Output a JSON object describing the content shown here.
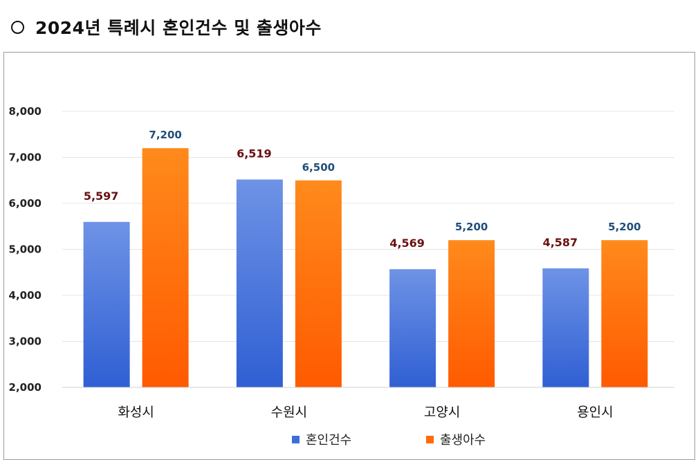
{
  "page": {
    "title": "2024년 특례시 혼인건수 및 출생아수"
  },
  "chart_data": {
    "type": "bar",
    "categories": [
      "화성시",
      "수원시",
      "고양시",
      "용인시"
    ],
    "series": [
      {
        "name": "혼인건수",
        "values": [
          5597,
          6519,
          4569,
          4587
        ],
        "labels": [
          "5,597",
          "6,519",
          "4,569",
          "4,587"
        ],
        "color": "#3b6fd8"
      },
      {
        "name": "출생아수",
        "values": [
          7200,
          6500,
          5200,
          5200
        ],
        "labels": [
          "7,200",
          "6,500",
          "5,200",
          "5,200"
        ],
        "color": "#ff6a0a"
      }
    ],
    "ylim": [
      2000,
      8000
    ],
    "yticks": [
      2000,
      3000,
      4000,
      5000,
      6000,
      7000,
      8000
    ],
    "ytick_labels": [
      "2,000",
      "3,000",
      "4,000",
      "5,000",
      "6,000",
      "7,000",
      "8,000"
    ],
    "grid": true,
    "legend_position": "bottom",
    "title": "2024년 특례시 혼인건수 및 출생아수",
    "xlabel": "",
    "ylabel": ""
  }
}
